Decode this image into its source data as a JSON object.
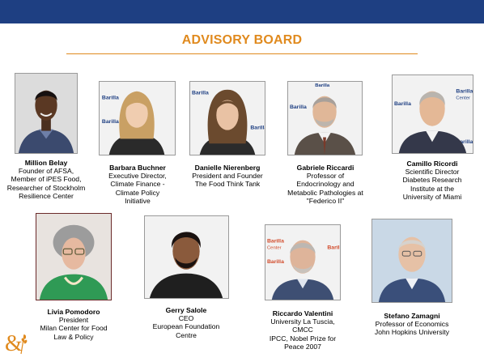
{
  "header": {
    "title": "ADVISORY BOARD"
  },
  "members": [
    {
      "name": "Million Belay",
      "lines": [
        "Founder of AFSA,",
        "Member of iPES Food,",
        "Researcher of Stockholm",
        "Resilience Center"
      ]
    },
    {
      "name": "Barbara Buchner",
      "lines": [
        "Executive Director,",
        "Climate Finance -",
        "Climate Policy",
        "Initiative"
      ]
    },
    {
      "name": "Danielle Nierenberg",
      "lines": [
        "President and Founder",
        "The Food Think Tank"
      ]
    },
    {
      "name": "Gabriele Riccardi",
      "lines": [
        "Professor of",
        "Endocrinology and",
        "Metabolic Pathologies at",
        "\"Federico II\""
      ]
    },
    {
      "name": "Camillo Ricordi",
      "lines": [
        "Scientific Director",
        "Diabetes Research",
        "Institute at the",
        "University of Miami"
      ]
    },
    {
      "name": "Livia Pomodoro",
      "lines": [
        "President",
        "Milan Center for Food",
        "Law & Policy"
      ]
    },
    {
      "name": "Gerry Salole",
      "lines": [
        "CEO",
        "European Foundation",
        "Centre"
      ]
    },
    {
      "name": "Riccardo Valentini",
      "lines": [
        "University La Tuscia,",
        "CMCC",
        "IPCC, Nobel Prize for",
        "Peace 2007"
      ]
    },
    {
      "name": "Stefano Zamagni",
      "lines": [
        "Professor of Economics",
        "John Hopkins University"
      ]
    }
  ],
  "backdrop_text": {
    "barilla": "Barilla",
    "center": "Center"
  },
  "colors": {
    "topbar": "#1e3f82",
    "title": "#e08a1e",
    "logo": "#e08a1e"
  }
}
